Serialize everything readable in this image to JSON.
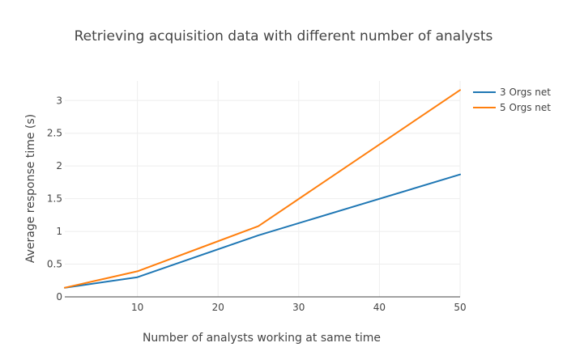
{
  "chart_data": {
    "type": "line",
    "title": "Retrieving acquisition data with different number of analysts",
    "xlabel": "Number of analysts working at same time",
    "ylabel": "Average response time (s)",
    "xlim": [
      1,
      50
    ],
    "ylim": [
      0,
      3.3
    ],
    "xticks": [
      10,
      20,
      30,
      40,
      50
    ],
    "yticks": [
      0,
      0.5,
      1,
      1.5,
      2,
      2.5,
      3
    ],
    "grid": true,
    "legend_position": "top-right",
    "series": [
      {
        "name": "3 Orgs net",
        "color": "#1f77b4",
        "x": [
          1,
          10,
          25,
          50
        ],
        "y": [
          0.14,
          0.3,
          0.94,
          1.87
        ]
      },
      {
        "name": "5 Orgs net",
        "color": "#ff7f0e",
        "x": [
          1,
          10,
          25,
          50
        ],
        "y": [
          0.14,
          0.39,
          1.08,
          3.16
        ]
      }
    ]
  }
}
